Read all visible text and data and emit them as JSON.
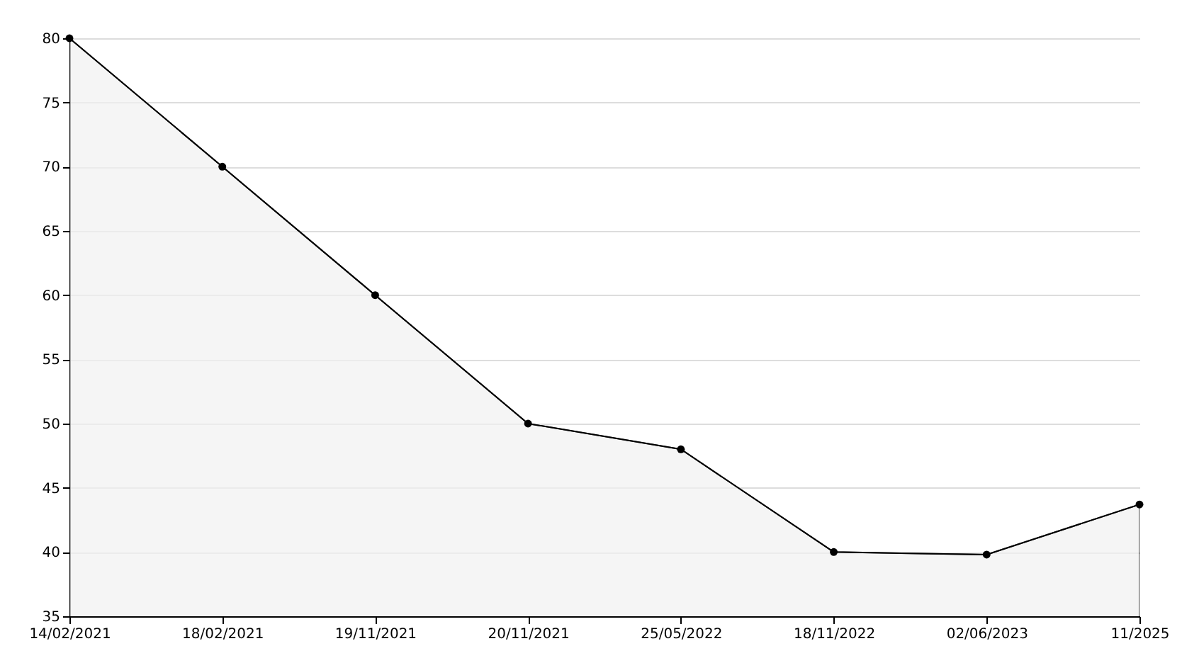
{
  "chart_data": {
    "type": "area",
    "categories": [
      "14/02/2021",
      "18/02/2021",
      "19/11/2021",
      "20/11/2021",
      "25/05/2022",
      "18/11/2022",
      "02/06/2023",
      "11/2025"
    ],
    "series": [
      {
        "color": "#000000",
        "values": [
          80,
          70,
          60,
          50,
          48,
          40,
          39.8,
          43.7
        ]
      }
    ],
    "ylim": [
      35,
      80
    ],
    "yticks": [
      35,
      40,
      45,
      50,
      55,
      60,
      65,
      70,
      75,
      80
    ],
    "grid": "y",
    "marker": "circle"
  }
}
